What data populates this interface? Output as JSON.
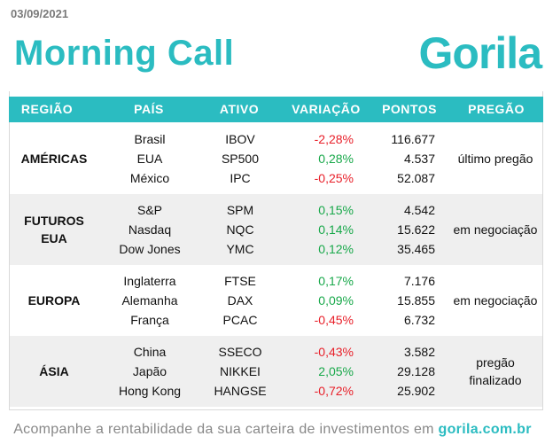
{
  "date": "03/09/2021",
  "title": "Morning Call",
  "logo": "Gorila",
  "columns": [
    "REGIÃO",
    "PAÍS",
    "ATIVO",
    "VARIAÇÃO",
    "PONTOS",
    "PREGÃO"
  ],
  "colors": {
    "accent": "#2bbcc1",
    "negative": "#e8202a",
    "positive": "#18a84a"
  },
  "groups": [
    {
      "region": "AMÉRICAS",
      "status": "último pregão",
      "rows": [
        {
          "pais": "Brasil",
          "ativo": "IBOV",
          "variacao": "-2,28%",
          "pontos": "116.677"
        },
        {
          "pais": "EUA",
          "ativo": "SP500",
          "variacao": "0,28%",
          "pontos": "4.537"
        },
        {
          "pais": "México",
          "ativo": "IPC",
          "variacao": "-0,25%",
          "pontos": "52.087"
        }
      ]
    },
    {
      "region": "FUTUROS EUA",
      "status": "em negociação",
      "rows": [
        {
          "pais": "S&P",
          "ativo": "SPM",
          "variacao": "0,15%",
          "pontos": "4.542"
        },
        {
          "pais": "Nasdaq",
          "ativo": "NQC",
          "variacao": "0,14%",
          "pontos": "15.622"
        },
        {
          "pais": "Dow Jones",
          "ativo": "YMC",
          "variacao": "0,12%",
          "pontos": "35.465"
        }
      ]
    },
    {
      "region": "EUROPA",
      "status": "em negociação",
      "rows": [
        {
          "pais": "Inglaterra",
          "ativo": "FTSE",
          "variacao": "0,17%",
          "pontos": "7.176"
        },
        {
          "pais": "Alemanha",
          "ativo": "DAX",
          "variacao": "0,09%",
          "pontos": "15.855"
        },
        {
          "pais": "França",
          "ativo": "PCAC",
          "variacao": "-0,45%",
          "pontos": "6.732"
        }
      ]
    },
    {
      "region": "ÁSIA",
      "status": "pregão finalizado",
      "rows": [
        {
          "pais": "China",
          "ativo": "SSECO",
          "variacao": "-0,43%",
          "pontos": "3.582"
        },
        {
          "pais": "Japão",
          "ativo": "NIKKEI",
          "variacao": "2,05%",
          "pontos": "29.128"
        },
        {
          "pais": "Hong Kong",
          "ativo": "HANGSE",
          "variacao": "-0,72%",
          "pontos": "25.902"
        }
      ]
    }
  ],
  "footer": {
    "text": "Acompanhe a rentabilidade da sua carteira de investimentos em",
    "link": "gorila.com.br"
  }
}
